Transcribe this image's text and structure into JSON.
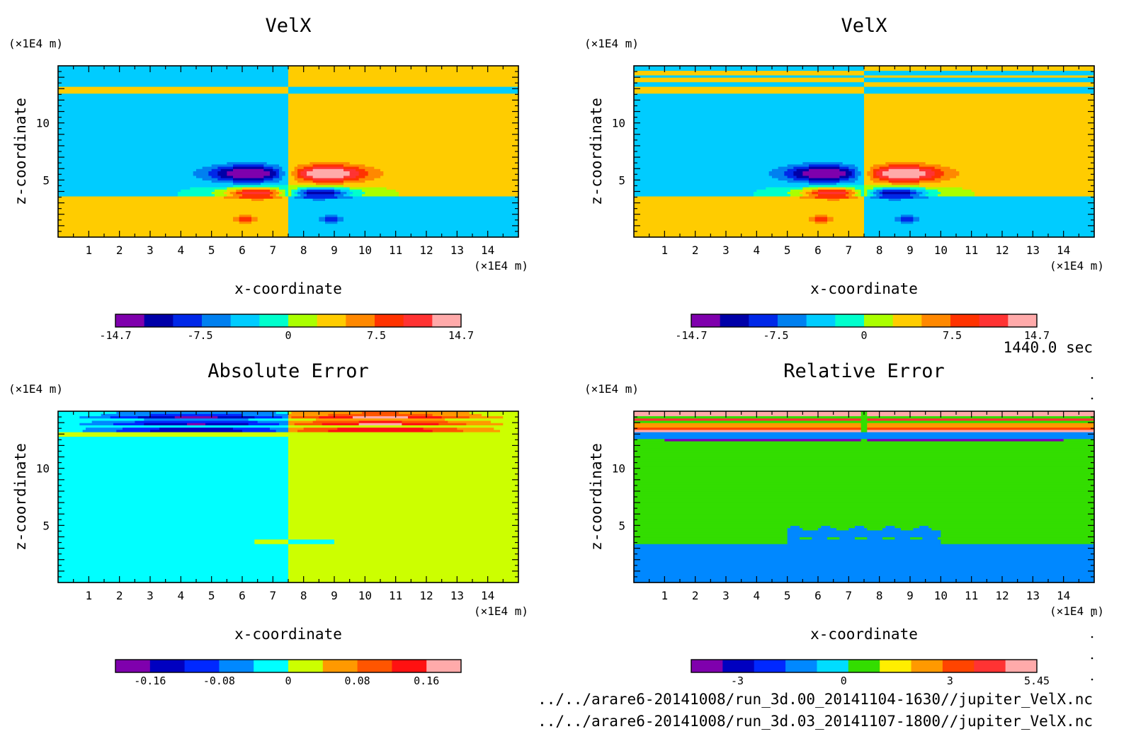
{
  "time_label": "1440.0 sec",
  "footer_paths": [
    "../../arare6-20141008/run_3d.00_20141104-1630//jupiter_VelX.nc",
    "../../arare6-20141008/run_3d.03_20141107-1800//jupiter_VelX.nc"
  ],
  "chart_data": [
    {
      "type": "heatmap",
      "title": "VelX",
      "xlabel": "x-coordinate",
      "ylabel": "z-coordinate",
      "x_unit": "(×1E4 m)",
      "y_unit": "(×1E4 m)",
      "xlim": [
        0,
        15
      ],
      "ylim": [
        0,
        15
      ],
      "xticks": [
        1,
        2,
        3,
        4,
        5,
        6,
        7,
        8,
        9,
        10,
        11,
        12,
        13,
        14
      ],
      "yticks": [
        5,
        10
      ],
      "colorbar": {
        "ticks": [
          "-14.7",
          "-7.5",
          "0",
          "7.5",
          "14.7"
        ],
        "tick_values": [
          -14.7,
          -7.5,
          0,
          7.5,
          14.7
        ],
        "range": [
          -14.7,
          14.7
        ],
        "colors": [
          "#7f00ad",
          "#0000a8",
          "#0028e8",
          "#0080f0",
          "#00ccff",
          "#00ffcc",
          "#aaff00",
          "#ffcc00",
          "#ff8800",
          "#ff3300",
          "#ff3333",
          "#ffaaaa"
        ]
      },
      "field": "velx"
    },
    {
      "type": "heatmap",
      "title": "VelX",
      "xlabel": "x-coordinate",
      "ylabel": "z-coordinate",
      "x_unit": "(×1E4 m)",
      "y_unit": "(×1E4 m)",
      "xlim": [
        0,
        15
      ],
      "ylim": [
        0,
        15
      ],
      "xticks": [
        1,
        2,
        3,
        4,
        5,
        6,
        7,
        8,
        9,
        10,
        11,
        12,
        13,
        14
      ],
      "yticks": [
        5,
        10
      ],
      "colorbar": {
        "ticks": [
          "-14.7",
          "-7.5",
          "0",
          "7.5",
          "14.7"
        ],
        "tick_values": [
          -14.7,
          -7.5,
          0,
          7.5,
          14.7
        ],
        "range": [
          -14.7,
          14.7
        ],
        "colors": [
          "#7f00ad",
          "#0000a8",
          "#0028e8",
          "#0080f0",
          "#00ccff",
          "#00ffcc",
          "#aaff00",
          "#ffcc00",
          "#ff8800",
          "#ff3300",
          "#ff3333",
          "#ffaaaa"
        ]
      },
      "field": "velx2"
    },
    {
      "type": "heatmap",
      "title": "Absolute Error",
      "xlabel": "x-coordinate",
      "ylabel": "z-coordinate",
      "x_unit": "(×1E4 m)",
      "y_unit": "(×1E4 m)",
      "xlim": [
        0,
        15
      ],
      "ylim": [
        0,
        15
      ],
      "xticks": [
        1,
        2,
        3,
        4,
        5,
        6,
        7,
        8,
        9,
        10,
        11,
        12,
        13,
        14
      ],
      "yticks": [
        5,
        10
      ],
      "colorbar": {
        "ticks": [
          "-0.16",
          "-0.08",
          "0",
          "0.08",
          "0.16"
        ],
        "tick_values": [
          -0.16,
          -0.08,
          0,
          0.08,
          0.16
        ],
        "range": [
          -0.2,
          0.2
        ],
        "colors": [
          "#7f00ad",
          "#0000c0",
          "#0028ff",
          "#0088ff",
          "#00ffff",
          "#ccff00",
          "#ff9900",
          "#ff5500",
          "#ff1111",
          "#ffaaaa"
        ]
      },
      "field": "abs"
    },
    {
      "type": "heatmap",
      "title": "Relative Error",
      "xlabel": "x-coordinate",
      "ylabel": "z-coordinate",
      "x_unit": "(×1E4 m)",
      "y_unit": "(×1E4 m)",
      "xlim": [
        0,
        15
      ],
      "ylim": [
        0,
        15
      ],
      "xticks": [
        1,
        2,
        3,
        4,
        5,
        6,
        7,
        8,
        9,
        10,
        11,
        12,
        13,
        14
      ],
      "yticks": [
        5,
        10
      ],
      "colorbar": {
        "ticks": [
          "-3",
          "0",
          "3",
          "5.45"
        ],
        "tick_values": [
          -3,
          0,
          3,
          5.45
        ],
        "range": [
          -4.3,
          5.45
        ],
        "colors": [
          "#7f00ad",
          "#0000c0",
          "#0028ff",
          "#0088ff",
          "#00ddff",
          "#33dd00",
          "#ffee00",
          "#ff9900",
          "#ff4400",
          "#ff3333",
          "#ffaaaa"
        ]
      },
      "field": "rel"
    }
  ]
}
